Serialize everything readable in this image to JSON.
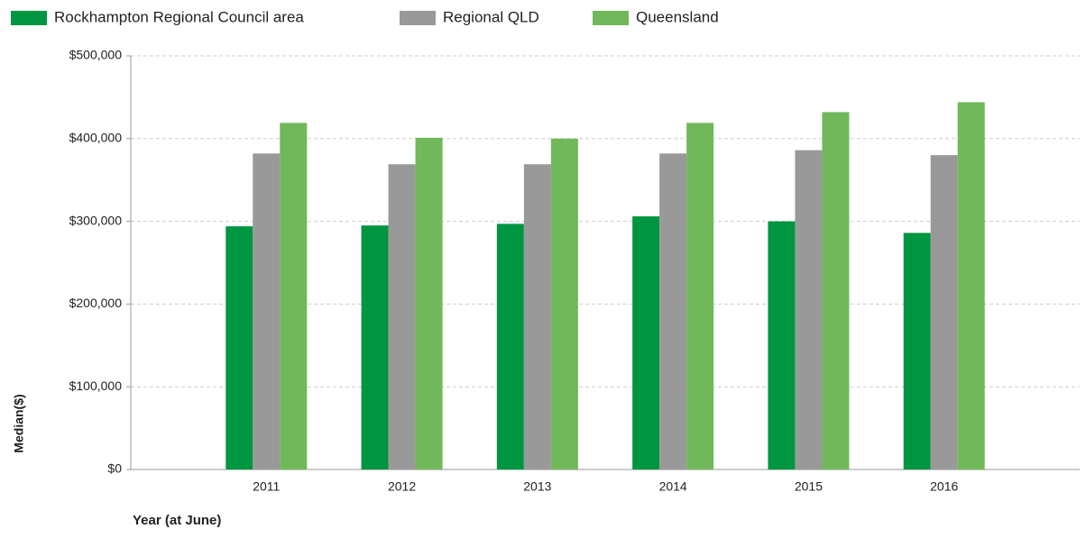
{
  "chart_data": {
    "type": "bar",
    "x": [
      2011,
      2012,
      2013,
      2014,
      2015,
      2016
    ],
    "xlim": [
      2010,
      2017
    ],
    "series": [
      {
        "name": "Rockhampton Regional Council area",
        "color": "#009540",
        "values": [
          294000,
          295000,
          297000,
          306000,
          300000,
          286000
        ]
      },
      {
        "name": "Regional QLD",
        "color": "#999999",
        "values": [
          382000,
          369000,
          369000,
          382000,
          386000,
          380000
        ]
      },
      {
        "name": "Queensland",
        "color": "#70b85a",
        "values": [
          419000,
          401000,
          400000,
          419000,
          432000,
          444000
        ]
      }
    ],
    "ylim": [
      0,
      500000
    ],
    "yticks": [
      {
        "value": 0,
        "label": "$0"
      },
      {
        "value": 100000,
        "label": "$100,000"
      },
      {
        "value": 200000,
        "label": "$200,000"
      },
      {
        "value": 300000,
        "label": "$300,000"
      },
      {
        "value": 400000,
        "label": "$400,000"
      },
      {
        "value": 500000,
        "label": "$500,000"
      }
    ],
    "xlabel": "Year (at June)",
    "ylabel": "Median($)",
    "grid": true,
    "legend": "top"
  }
}
